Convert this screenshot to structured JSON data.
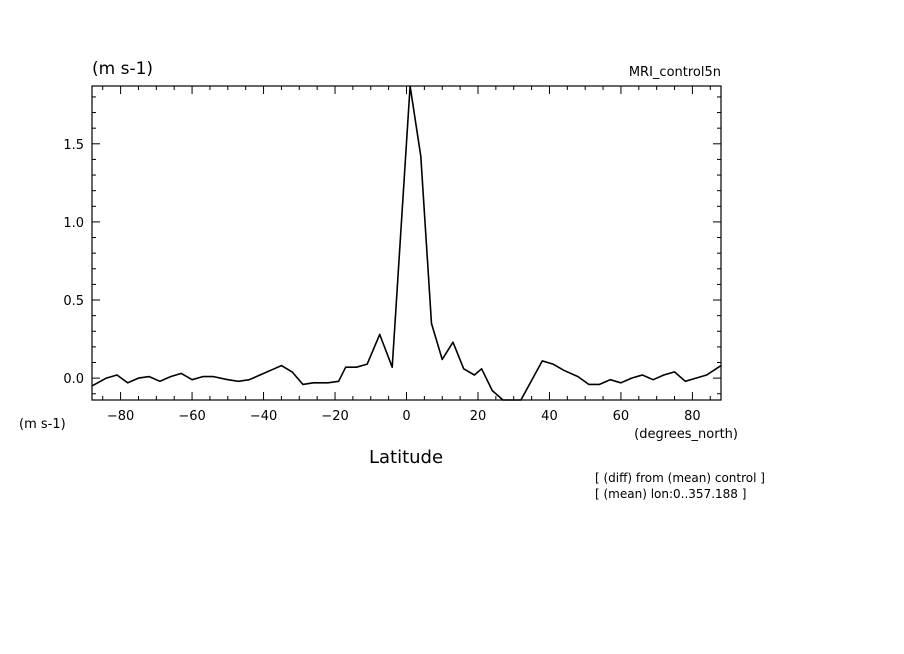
{
  "chart_data": {
    "type": "line",
    "title_units": "(m s-1)",
    "source_label": "MRI_control5n",
    "xlabel": "Latitude",
    "x_units": "(degrees_north)",
    "y_units_bottom": "(m s-1)",
    "notes": [
      "[ (diff) from (mean) control ]",
      "[ (mean) lon:0..357.188 ]"
    ],
    "xlim": [
      -88,
      88
    ],
    "ylim": [
      -0.14,
      1.87
    ],
    "x_ticks": [
      -80,
      -60,
      -40,
      -20,
      0,
      20,
      40,
      60,
      80
    ],
    "x_tick_labels": [
      "−80",
      "−60",
      "−40",
      "−20",
      "0",
      "20",
      "40",
      "60",
      "80"
    ],
    "y_ticks": [
      0.0,
      0.5,
      1.0,
      1.5
    ],
    "y_tick_labels": [
      "0.0",
      "0.5",
      "1.0",
      "1.5"
    ],
    "grid": false,
    "series": [
      {
        "x": [
          -88,
          -84,
          -81,
          -78,
          -75,
          -72,
          -69,
          -66,
          -63,
          -60,
          -57,
          -54,
          -50,
          -47,
          -44,
          -41,
          -38,
          -35,
          -32,
          -29,
          -26,
          -22,
          -19,
          -17,
          -14,
          -11,
          -7.5,
          -4,
          1,
          4,
          7,
          10,
          13,
          16,
          19,
          21,
          24,
          27,
          29,
          32,
          38,
          41,
          44,
          48,
          51,
          54,
          57,
          60,
          63,
          66,
          69,
          72,
          75,
          78,
          81,
          84,
          88
        ],
        "y": [
          -0.05,
          0.0,
          0.02,
          -0.03,
          0.0,
          0.01,
          -0.02,
          0.01,
          0.03,
          -0.01,
          0.01,
          0.01,
          -0.01,
          -0.02,
          -0.01,
          0.02,
          0.05,
          0.08,
          0.04,
          -0.04,
          -0.03,
          -0.03,
          -0.02,
          0.07,
          0.07,
          0.09,
          0.28,
          0.07,
          1.87,
          1.42,
          0.35,
          0.12,
          0.23,
          0.06,
          0.02,
          0.06,
          -0.08,
          -0.14,
          -0.14,
          -0.14,
          0.11,
          0.09,
          0.05,
          0.01,
          -0.04,
          -0.04,
          -0.01,
          -0.03,
          0.0,
          0.02,
          -0.01,
          0.02,
          0.04,
          -0.02,
          0.0,
          0.02,
          0.08
        ]
      }
    ]
  }
}
